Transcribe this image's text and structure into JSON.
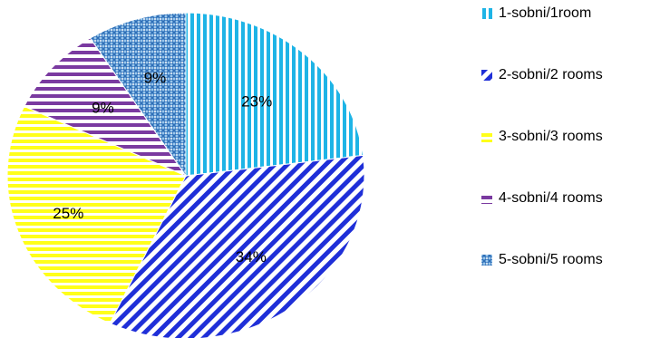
{
  "chart_data": {
    "type": "pie",
    "title": "",
    "categories": [
      "1-sobni/1room",
      "2-sobni/2 rooms",
      "3-sobni/3 rooms",
      "4-sobni/4 rooms",
      "5-sobni/5 rooms"
    ],
    "values": [
      23,
      34,
      25,
      9,
      9
    ],
    "value_labels": [
      "23%",
      "34%",
      "25%",
      "9%",
      "9%"
    ],
    "colors": [
      "#1EB4E6",
      "#1F2FD8",
      "#FFFF1A",
      "#7A3AA0",
      "#2E86C8"
    ],
    "patterns": [
      "vertical-stripes",
      "diagonal-stripes",
      "horizontal-stripes",
      "horizontal-stripes",
      "crosshatch"
    ],
    "start_angle_deg": 0,
    "direction": "clockwise",
    "legend_position": "right"
  }
}
